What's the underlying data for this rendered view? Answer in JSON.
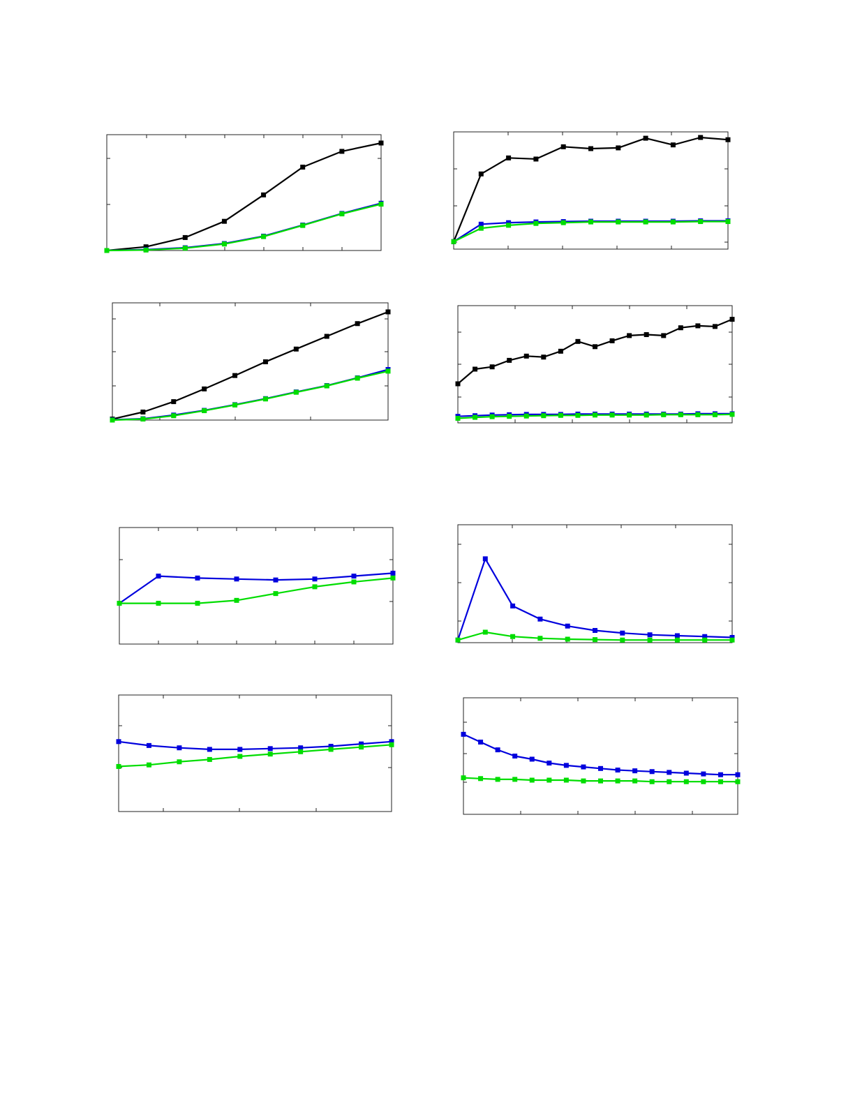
{
  "colors": {
    "black": "#000000",
    "blue": "#0000dd",
    "green": "#00dd00",
    "frame": "#222222"
  },
  "chart_data": [
    {
      "type": "line",
      "xlim": [
        0,
        7
      ],
      "ylim": [
        0,
        2.5
      ],
      "x": [
        0,
        1,
        2,
        3,
        4,
        5,
        6,
        7
      ],
      "series": [
        {
          "color": "#000000",
          "values": [
            0,
            0.08,
            0.28,
            0.63,
            1.2,
            1.8,
            2.14,
            2.32
          ]
        },
        {
          "color": "#0000dd",
          "values": [
            0,
            0.02,
            0.06,
            0.15,
            0.31,
            0.55,
            0.8,
            1.02
          ]
        },
        {
          "color": "#00dd00",
          "values": [
            0,
            0.01,
            0.05,
            0.14,
            0.3,
            0.54,
            0.79,
            1.0
          ]
        }
      ]
    },
    {
      "type": "line",
      "xlim": [
        0,
        10
      ],
      "ylim": [
        -0.2,
        2.95
      ],
      "x": [
        0,
        1,
        2,
        3,
        4,
        5,
        6,
        7,
        8,
        9,
        10
      ],
      "series": [
        {
          "color": "#000000",
          "values": [
            0,
            1.82,
            2.25,
            2.22,
            2.55,
            2.5,
            2.52,
            2.78,
            2.6,
            2.8,
            2.74
          ]
        },
        {
          "color": "#0000dd",
          "values": [
            0,
            0.47,
            0.51,
            0.53,
            0.54,
            0.55,
            0.55,
            0.55,
            0.55,
            0.56,
            0.56
          ]
        },
        {
          "color": "#00dd00",
          "values": [
            0,
            0.36,
            0.44,
            0.49,
            0.51,
            0.53,
            0.53,
            0.53,
            0.53,
            0.54,
            0.54
          ]
        }
      ]
    },
    {
      "type": "line",
      "xlim": [
        0,
        9
      ],
      "ylim": [
        0,
        3.5
      ],
      "x": [
        0,
        1,
        2,
        3,
        4,
        5,
        6,
        7,
        8,
        9
      ],
      "series": [
        {
          "color": "#000000",
          "values": [
            0.03,
            0.24,
            0.55,
            0.93,
            1.33,
            1.74,
            2.12,
            2.5,
            2.88,
            3.23
          ]
        },
        {
          "color": "#0000dd",
          "values": [
            0.01,
            0.04,
            0.15,
            0.29,
            0.46,
            0.64,
            0.84,
            1.03,
            1.26,
            1.51
          ]
        },
        {
          "color": "#00dd00",
          "values": [
            0.0,
            0.03,
            0.13,
            0.28,
            0.45,
            0.63,
            0.83,
            1.02,
            1.25,
            1.46
          ]
        }
      ]
    },
    {
      "type": "line",
      "xlim": [
        0,
        16
      ],
      "ylim": [
        -0.2,
        3.4
      ],
      "x": [
        0,
        1,
        2,
        3,
        4,
        5,
        6,
        7,
        8,
        9,
        10,
        11,
        12,
        13,
        14,
        15,
        16
      ],
      "series": [
        {
          "color": "#000000",
          "values": [
            1.0,
            1.45,
            1.52,
            1.72,
            1.85,
            1.82,
            2.0,
            2.3,
            2.14,
            2.32,
            2.48,
            2.51,
            2.48,
            2.72,
            2.78,
            2.76,
            2.98
          ]
        },
        {
          "color": "#0000dd",
          "values": [
            0.0,
            0.02,
            0.04,
            0.05,
            0.06,
            0.06,
            0.06,
            0.07,
            0.07,
            0.07,
            0.07,
            0.07,
            0.07,
            0.07,
            0.08,
            0.08,
            0.08
          ]
        },
        {
          "color": "#00dd00",
          "values": [
            -0.06,
            -0.03,
            -0.01,
            0.0,
            0.01,
            0.02,
            0.03,
            0.03,
            0.04,
            0.04,
            0.04,
            0.04,
            0.05,
            0.05,
            0.05,
            0.05,
            0.06
          ]
        }
      ]
    },
    {
      "type": "line",
      "xlim": [
        0,
        7
      ],
      "ylim": [
        0,
        1.2
      ],
      "x": [
        0,
        1,
        2,
        3,
        4,
        5,
        6,
        7
      ],
      "series": [
        {
          "color": "#0000dd",
          "values": [
            0.42,
            0.7,
            0.68,
            0.67,
            0.66,
            0.67,
            0.7,
            0.73
          ]
        },
        {
          "color": "#00dd00",
          "values": [
            0.42,
            0.42,
            0.42,
            0.45,
            0.52,
            0.59,
            0.64,
            0.68
          ]
        }
      ]
    },
    {
      "type": "line",
      "xlim": [
        0,
        10
      ],
      "ylim": [
        0,
        1.35
      ],
      "x": [
        0,
        1,
        2,
        3,
        4,
        5,
        6,
        7,
        8,
        9,
        10
      ],
      "series": [
        {
          "color": "#0000dd",
          "values": [
            0.03,
            0.96,
            0.42,
            0.27,
            0.19,
            0.14,
            0.11,
            0.09,
            0.08,
            0.07,
            0.06
          ]
        },
        {
          "color": "#00dd00",
          "values": [
            0.03,
            0.12,
            0.07,
            0.05,
            0.04,
            0.035,
            0.03,
            0.03,
            0.03,
            0.03,
            0.03
          ]
        }
      ]
    },
    {
      "type": "line",
      "xlim": [
        0,
        9
      ],
      "ylim": [
        0,
        1.5
      ],
      "x": [
        0,
        1,
        2,
        3,
        4,
        5,
        6,
        7,
        8,
        9
      ],
      "series": [
        {
          "color": "#0000dd",
          "values": [
            0.9,
            0.85,
            0.82,
            0.8,
            0.8,
            0.81,
            0.82,
            0.84,
            0.87,
            0.9
          ]
        },
        {
          "color": "#00dd00",
          "values": [
            0.58,
            0.6,
            0.64,
            0.67,
            0.71,
            0.74,
            0.77,
            0.8,
            0.83,
            0.86
          ]
        }
      ]
    },
    {
      "type": "line",
      "xlim": [
        0,
        16
      ],
      "ylim": [
        0,
        1.5
      ],
      "x": [
        0,
        1,
        2,
        3,
        4,
        5,
        6,
        7,
        8,
        9,
        10,
        11,
        12,
        13,
        14,
        15,
        16
      ],
      "series": [
        {
          "color": "#0000dd",
          "values": [
            1.03,
            0.93,
            0.83,
            0.75,
            0.71,
            0.66,
            0.63,
            0.61,
            0.59,
            0.57,
            0.56,
            0.55,
            0.54,
            0.53,
            0.52,
            0.51,
            0.51
          ]
        },
        {
          "color": "#00dd00",
          "values": [
            0.47,
            0.46,
            0.45,
            0.45,
            0.44,
            0.44,
            0.44,
            0.43,
            0.43,
            0.43,
            0.43,
            0.42,
            0.42,
            0.42,
            0.42,
            0.42,
            0.42
          ]
        }
      ]
    }
  ]
}
